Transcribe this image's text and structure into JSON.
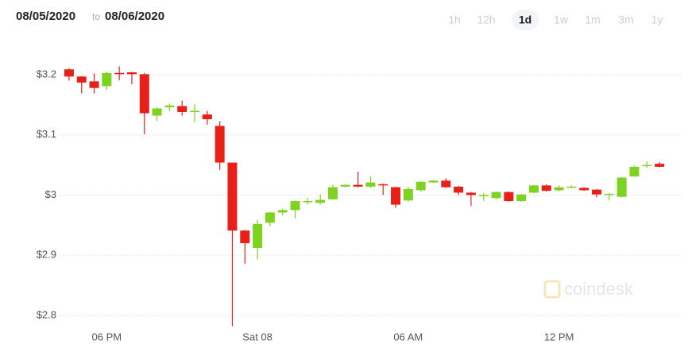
{
  "header": {
    "from": "08/05/2020",
    "separator": "to",
    "to": "08/06/2020",
    "ranges": [
      "1h",
      "12h",
      "1d",
      "1w",
      "1m",
      "3m",
      "1y"
    ],
    "active_range": 2
  },
  "chart_data": {
    "type": "candlestick",
    "watermark": "coindesk",
    "categories": [
      null,
      null,
      null,
      "06 PM",
      null,
      null,
      null,
      null,
      null,
      null,
      null,
      null,
      null,
      null,
      null,
      "Sat 08",
      null,
      null,
      null,
      null,
      null,
      null,
      null,
      null,
      null,
      null,
      null,
      "06 AM",
      null,
      null,
      null,
      null,
      null,
      null,
      null,
      null,
      null,
      null,
      null,
      "12 PM",
      null,
      null,
      null,
      null,
      null,
      null,
      null,
      null
    ],
    "open": [
      3.209,
      3.197,
      3.189,
      3.181,
      3.203,
      3.204,
      3.201,
      3.132,
      3.146,
      3.148,
      3.138,
      3.134,
      3.115,
      3.054,
      2.941,
      2.912,
      2.954,
      2.971,
      2.975,
      2.989,
      2.987,
      2.993,
      3.014,
      3.017,
      3.014,
      3.018,
      3.013,
      2.991,
      3.008,
      3.021,
      3.024,
      3.014,
      3.004,
      3.0,
      2.995,
      3.005,
      2.99,
      3.004,
      3.016,
      3.008,
      3.013,
      3.012,
      3.009,
      3.0,
      2.997,
      3.031,
      3.049,
      3.052
    ],
    "high": [
      3.211,
      3.198,
      3.202,
      3.205,
      3.214,
      3.205,
      3.203,
      3.146,
      3.152,
      3.157,
      3.151,
      3.14,
      3.123,
      3.054,
      2.942,
      2.959,
      2.972,
      2.977,
      2.991,
      2.995,
      3.001,
      3.017,
      3.018,
      3.039,
      3.031,
      3.019,
      3.014,
      3.014,
      3.023,
      3.025,
      3.028,
      3.015,
      3.005,
      3.003,
      3.006,
      3.006,
      3.002,
      3.017,
      3.018,
      3.016,
      3.016,
      3.013,
      3.01,
      3.003,
      3.03,
      3.049,
      3.056,
      3.055
    ],
    "low": [
      3.19,
      3.169,
      3.169,
      3.175,
      3.191,
      3.184,
      3.101,
      3.123,
      3.139,
      3.132,
      3.121,
      3.117,
      3.042,
      2.782,
      2.886,
      2.893,
      2.948,
      2.966,
      2.961,
      2.984,
      2.984,
      2.992,
      3.013,
      3.013,
      3.012,
      3.0,
      2.979,
      2.989,
      3.006,
      3.02,
      3.012,
      3.0,
      2.982,
      2.99,
      2.993,
      2.989,
      2.989,
      3.003,
      3.006,
      3.006,
      3.012,
      3.007,
      2.996,
      2.991,
      2.996,
      3.03,
      3.045,
      3.046
    ],
    "close": [
      3.197,
      3.187,
      3.178,
      3.203,
      3.202,
      3.201,
      3.136,
      3.144,
      3.149,
      3.138,
      3.14,
      3.126,
      3.054,
      2.941,
      2.92,
      2.952,
      2.971,
      2.975,
      2.99,
      2.99,
      2.992,
      3.013,
      3.017,
      3.014,
      3.021,
      3.016,
      2.984,
      3.01,
      3.022,
      3.024,
      3.013,
      3.004,
      3.0,
      3.0,
      3.005,
      2.99,
      3.001,
      3.016,
      3.007,
      3.013,
      3.014,
      3.008,
      3.001,
      3.002,
      3.029,
      3.047,
      3.05,
      3.047
    ],
    "up_color": "#7ed321",
    "down_color": "#e8201a",
    "ylim": [
      2.78,
      3.245
    ],
    "yticks": [
      {
        "value": 2.8,
        "label": "$2.8"
      },
      {
        "value": 2.9,
        "label": "$2.9"
      },
      {
        "value": 3,
        "label": "$3"
      },
      {
        "value": 3.1,
        "label": "$3.1"
      },
      {
        "value": 3.2,
        "label": "$3.2"
      }
    ],
    "grid": true
  }
}
